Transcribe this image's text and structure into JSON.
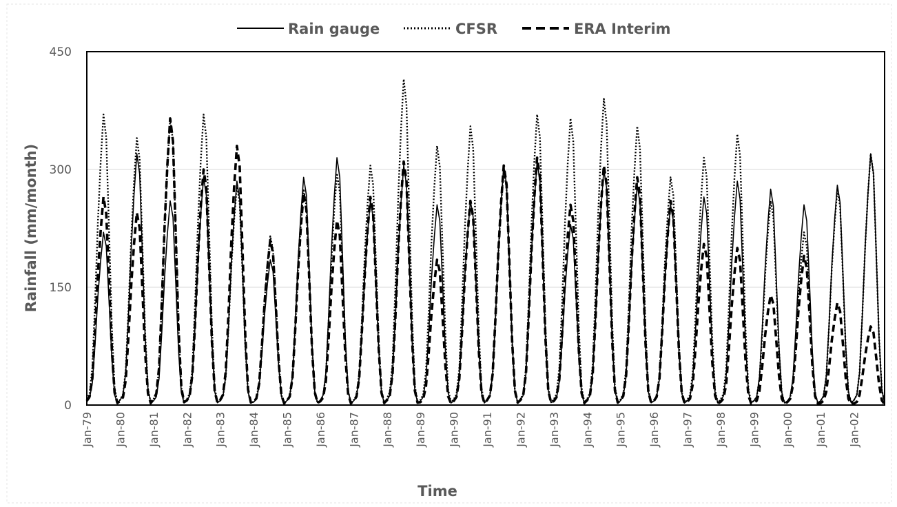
{
  "chart_data": {
    "type": "line",
    "title": "",
    "xlabel": "Time",
    "ylabel": "Rainfall (mm/month)",
    "ylim": [
      0,
      450
    ],
    "yticks": [
      0,
      150,
      300,
      450
    ],
    "grid": "horizontal",
    "legend": "top",
    "x_start": "Jan-79",
    "x_end": "Dec-02",
    "x_tick_labels": [
      "Jan-79",
      "Jan-80",
      "Jan-81",
      "Jan-82",
      "Jan-83",
      "Jan-84",
      "Jan-85",
      "Jan-86",
      "Jan-87",
      "Jan-88",
      "Jan-89",
      "Jan-90",
      "Jan-91",
      "Jan-92",
      "Jan-93",
      "Jan-94",
      "Jan-95",
      "Jan-96",
      "Jan-97",
      "Jan-98",
      "Jan-99",
      "Jan-00",
      "Jan-01",
      "Jan-02"
    ],
    "series": [
      {
        "name": "Rain gauge",
        "style": "solid",
        "color": "#000000",
        "annual_peaks": [
          220,
          320,
          260,
          290,
          285,
          185,
          290,
          315,
          260,
          305,
          255,
          260,
          305,
          310,
          230,
          300,
          280,
          255,
          265,
          285,
          275,
          255,
          280,
          320
        ]
      },
      {
        "name": "CFSR",
        "style": "dotted",
        "color": "#000000",
        "annual_peaks": [
          370,
          340,
          365,
          370,
          280,
          215,
          275,
          295,
          305,
          415,
          330,
          355,
          300,
          370,
          365,
          390,
          355,
          290,
          315,
          345,
          260,
          220,
          275,
          320
        ]
      },
      {
        "name": "ERA Interim",
        "style": "dashed",
        "color": "#000000",
        "annual_peaks": [
          265,
          245,
          365,
          300,
          330,
          210,
          270,
          235,
          265,
          310,
          185,
          260,
          305,
          315,
          255,
          305,
          290,
          260,
          205,
          200,
          140,
          190,
          130,
          100
        ]
      }
    ]
  }
}
